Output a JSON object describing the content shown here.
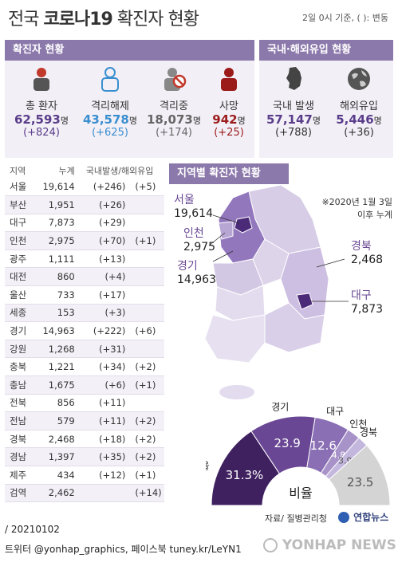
{
  "title": {
    "prefix": "전국 ",
    "bold": "코로나19",
    "suffix": " 확진자 현황"
  },
  "basis": "2일 0시 기준, ( ): 변동",
  "confirmed_panel": {
    "header": "확진자 현황",
    "stats": [
      {
        "label": "총 환자",
        "value": "62,593",
        "unit": "명",
        "delta": "(+824)",
        "color": "#5a3d8a",
        "icon": "person-icon"
      },
      {
        "label": "격리해제",
        "value": "43,578",
        "unit": "명",
        "delta": "(+625)",
        "color": "#3a8fd0",
        "icon": "released-person-icon"
      },
      {
        "label": "격리중",
        "value": "18,073",
        "unit": "명",
        "delta": "(+174)",
        "color": "#666666",
        "icon": "isolated-person-icon"
      },
      {
        "label": "사망",
        "value": "942",
        "unit": "명",
        "delta": "(+25)",
        "color": "#9b1b1b",
        "icon": "deceased-person-icon"
      }
    ]
  },
  "import_panel": {
    "header": "국내·해외유입 현황",
    "stats": [
      {
        "label": "국내 발생",
        "value": "57,147",
        "unit": "명",
        "delta": "(+788)",
        "color": "#5a3d8a",
        "icon": "korea-map-icon"
      },
      {
        "label": "해외유입",
        "value": "5,446",
        "unit": "명",
        "delta": "(+36)",
        "color": "#5a3d8a",
        "icon": "globe-icon"
      }
    ]
  },
  "table": {
    "headers": [
      "지역",
      "누계",
      "국내발생/해외유입"
    ],
    "rows": [
      {
        "region": "서울",
        "total": "19,614",
        "domestic": "(+246)",
        "overseas": "(+5)"
      },
      {
        "region": "부산",
        "total": "1,951",
        "domestic": "(+26)",
        "overseas": ""
      },
      {
        "region": "대구",
        "total": "7,873",
        "domestic": "(+29)",
        "overseas": ""
      },
      {
        "region": "인천",
        "total": "2,975",
        "domestic": "(+70)",
        "overseas": "(+1)"
      },
      {
        "region": "광주",
        "total": "1,111",
        "domestic": "(+13)",
        "overseas": ""
      },
      {
        "region": "대전",
        "total": "860",
        "domestic": "(+4)",
        "overseas": ""
      },
      {
        "region": "울산",
        "total": "733",
        "domestic": "(+17)",
        "overseas": ""
      },
      {
        "region": "세종",
        "total": "153",
        "domestic": "(+3)",
        "overseas": ""
      },
      {
        "region": "경기",
        "total": "14,963",
        "domestic": "(+222)",
        "overseas": "(+6)"
      },
      {
        "region": "강원",
        "total": "1,268",
        "domestic": "(+31)",
        "overseas": ""
      },
      {
        "region": "충북",
        "total": "1,221",
        "domestic": "(+34)",
        "overseas": "(+2)"
      },
      {
        "region": "충남",
        "total": "1,675",
        "domestic": "(+6)",
        "overseas": "(+1)"
      },
      {
        "region": "전북",
        "total": "856",
        "domestic": "(+11)",
        "overseas": ""
      },
      {
        "region": "전남",
        "total": "579",
        "domestic": "(+11)",
        "overseas": "(+2)"
      },
      {
        "region": "경북",
        "total": "2,468",
        "domestic": "(+18)",
        "overseas": "(+2)"
      },
      {
        "region": "경남",
        "total": "1,397",
        "domestic": "(+35)",
        "overseas": "(+2)"
      },
      {
        "region": "제주",
        "total": "434",
        "domestic": "(+12)",
        "overseas": "(+1)"
      },
      {
        "region": "검역",
        "total": "2,462",
        "domestic": "",
        "overseas": "(+14)"
      }
    ]
  },
  "map": {
    "header": "지역별 확진자 현황",
    "note1": "※2020년 1월 3일",
    "note2": "이후 누계",
    "labels": {
      "seoul": {
        "region": "서울",
        "value": "19,614"
      },
      "incheon": {
        "region": "인천",
        "value": "2,975"
      },
      "gyeonggi": {
        "region": "경기",
        "value": "14,963"
      },
      "gyeongbuk": {
        "region": "경북",
        "value": "2,468"
      },
      "daegu": {
        "region": "대구",
        "value": "7,873"
      }
    }
  },
  "ratio": {
    "center_label": "비율",
    "slices": [
      {
        "name": "서울",
        "value": 31.3,
        "label": "31.3%",
        "color": "#3f2160"
      },
      {
        "name": "경기",
        "value": 23.9,
        "label": "23.9",
        "color": "#6a4794"
      },
      {
        "name": "대구",
        "value": 12.6,
        "label": "12.6",
        "color": "#8a6fb4"
      },
      {
        "name": "인천",
        "value": 4.8,
        "label": "4.8",
        "color": "#a893c9"
      },
      {
        "name": "경북",
        "value": 3.9,
        "label": "3.9",
        "color": "#c4b7dd"
      },
      {
        "name": "",
        "value": 23.5,
        "label": "23.5",
        "color": "#d4d4d4"
      }
    ]
  },
  "source": "자료/ 질병관리청",
  "brand": "연합뉴스",
  "watermark": "YONHAP NEWS",
  "credit": "/ 20210102",
  "sns": "트위터 @yonhap_graphics, 페이스북 tuney.kr/LeYN1"
}
